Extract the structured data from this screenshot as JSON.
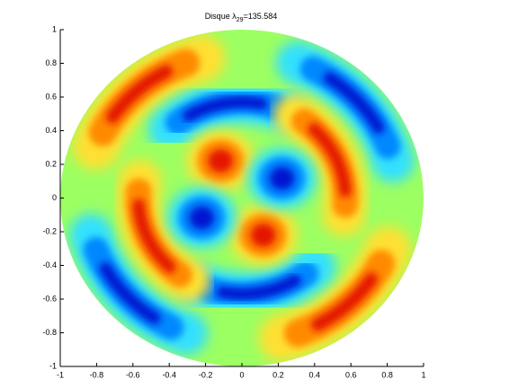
{
  "chart_data": {
    "type": "field",
    "title_parts": [
      "Disque  λ",
      "29",
      "=135.584"
    ],
    "xlim": [
      -1,
      1
    ],
    "ylim": [
      -1,
      1
    ],
    "xticks": [
      -1,
      -0.8,
      -0.6,
      -0.4,
      -0.2,
      0,
      0.2,
      0.4,
      0.6,
      0.8,
      1
    ],
    "yticks": [
      -1,
      -0.8,
      -0.6,
      -0.4,
      -0.2,
      0,
      0.2,
      0.4,
      0.6,
      0.8,
      1
    ]
  }
}
